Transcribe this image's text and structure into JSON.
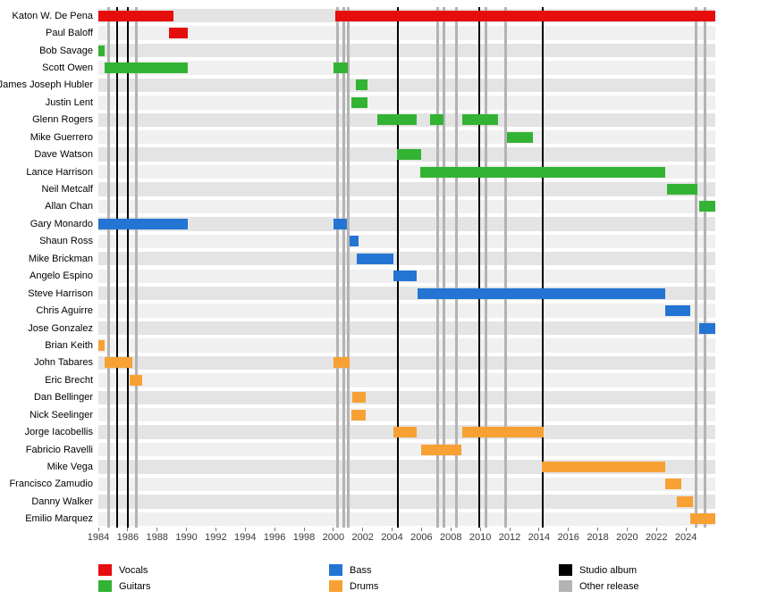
{
  "chart_data": {
    "type": "bar",
    "subtype": "band-membership-timeline",
    "title": "",
    "x_axis": {
      "start": 1984,
      "end": 2026,
      "tick_start": 1984,
      "tick_end": 2024,
      "tick_step": 2
    },
    "roles": {
      "vocals": {
        "label": "Vocals",
        "color": "#e60d0d"
      },
      "guitars": {
        "label": "Guitars",
        "color": "#33b333"
      },
      "bass": {
        "label": "Bass",
        "color": "#2474d3"
      },
      "drums": {
        "label": "Drums",
        "color": "#f7a135"
      }
    },
    "events": {
      "studio_album": {
        "label": "Studio album",
        "color": "#000000",
        "years": [
          1985.3,
          1986.0,
          2004.4,
          2009.9,
          2014.25
        ]
      },
      "other_release": {
        "label": "Other release",
        "color": "#b3b3b3",
        "years": [
          1984.7,
          1986.6,
          2000.3,
          2000.7,
          2001.0,
          2007.1,
          2007.55,
          2008.4,
          2010.4,
          2011.7,
          2024.7,
          2025.3
        ]
      }
    },
    "members": [
      {
        "name": "Katon W. De Pena",
        "role": "vocals",
        "periods": [
          [
            1984.0,
            1989.1
          ],
          [
            2000.1,
            2026.0
          ]
        ]
      },
      {
        "name": "Paul Baloff",
        "role": "vocals",
        "periods": [
          [
            1988.8,
            1990.1
          ]
        ]
      },
      {
        "name": "Bob Savage",
        "role": "guitars",
        "periods": [
          [
            1984.0,
            1984.4
          ]
        ]
      },
      {
        "name": "Scott Owen",
        "role": "guitars",
        "periods": [
          [
            1984.4,
            1990.1
          ],
          [
            2000.0,
            2001.0
          ]
        ]
      },
      {
        "name": "James Joseph Hubler",
        "role": "guitars",
        "periods": [
          [
            2001.5,
            2002.3
          ]
        ]
      },
      {
        "name": "Justin Lent",
        "role": "guitars",
        "periods": [
          [
            2001.2,
            2002.3
          ]
        ]
      },
      {
        "name": "Glenn Rogers",
        "role": "guitars",
        "periods": [
          [
            2003.0,
            2005.7
          ],
          [
            2006.6,
            2007.5
          ],
          [
            2008.8,
            2011.2
          ]
        ]
      },
      {
        "name": "Mike Guerrero",
        "role": "guitars",
        "periods": [
          [
            2011.8,
            2013.6
          ]
        ]
      },
      {
        "name": "Dave Watson",
        "role": "guitars",
        "periods": [
          [
            2004.3,
            2006.0
          ]
        ]
      },
      {
        "name": "Lance Harrison",
        "role": "guitars",
        "periods": [
          [
            2005.9,
            2022.6
          ]
        ]
      },
      {
        "name": "Neil Metcalf",
        "role": "guitars",
        "periods": [
          [
            2022.7,
            2024.8
          ]
        ]
      },
      {
        "name": "Allan Chan",
        "role": "guitars",
        "periods": [
          [
            2024.9,
            2026.0
          ]
        ]
      },
      {
        "name": "Gary Monardo",
        "role": "bass",
        "periods": [
          [
            1984.0,
            1990.1
          ],
          [
            2000.0,
            2000.9
          ]
        ]
      },
      {
        "name": "Shaun Ross",
        "role": "bass",
        "periods": [
          [
            2001.1,
            2001.7
          ]
        ]
      },
      {
        "name": "Mike Brickman",
        "role": "bass",
        "periods": [
          [
            2001.6,
            2004.1
          ]
        ]
      },
      {
        "name": "Angelo Espino",
        "role": "bass",
        "periods": [
          [
            2004.1,
            2005.7
          ]
        ]
      },
      {
        "name": "Steve Harrison",
        "role": "bass",
        "periods": [
          [
            2005.7,
            2022.6
          ]
        ]
      },
      {
        "name": "Chris Aguirre",
        "role": "bass",
        "periods": [
          [
            2022.6,
            2024.3
          ]
        ]
      },
      {
        "name": "Jose Gonzalez",
        "role": "bass",
        "periods": [
          [
            2024.9,
            2026.0
          ]
        ]
      },
      {
        "name": "Brian Keith",
        "role": "drums",
        "periods": [
          [
            1984.0,
            1984.4
          ]
        ]
      },
      {
        "name": "John Tabares",
        "role": "drums",
        "periods": [
          [
            1984.4,
            1986.3
          ],
          [
            2000.0,
            2001.1
          ]
        ]
      },
      {
        "name": "Eric Brecht",
        "role": "drums",
        "periods": [
          [
            1986.1,
            1987.0
          ]
        ]
      },
      {
        "name": "Dan Bellinger",
        "role": "drums",
        "periods": [
          [
            2001.3,
            2002.2
          ]
        ]
      },
      {
        "name": "Nick Seelinger",
        "role": "drums",
        "periods": [
          [
            2001.2,
            2002.2
          ]
        ]
      },
      {
        "name": "Jorge Iacobellis",
        "role": "drums",
        "periods": [
          [
            2004.1,
            2005.7
          ],
          [
            2008.8,
            2014.3
          ]
        ]
      },
      {
        "name": "Fabricio Ravelli",
        "role": "drums",
        "periods": [
          [
            2006.0,
            2008.7
          ]
        ]
      },
      {
        "name": "Mike Vega",
        "role": "drums",
        "periods": [
          [
            2014.2,
            2022.6
          ]
        ]
      },
      {
        "name": "Francisco Zamudio",
        "role": "drums",
        "periods": [
          [
            2022.6,
            2023.7
          ]
        ]
      },
      {
        "name": "Danny Walker",
        "role": "drums",
        "periods": [
          [
            2023.4,
            2024.5
          ]
        ]
      },
      {
        "name": "Emilio Marquez",
        "role": "drums",
        "periods": [
          [
            2024.3,
            2026.0
          ]
        ]
      }
    ],
    "legend_columns": [
      [
        "vocals",
        "guitars"
      ],
      [
        "bass",
        "drums"
      ],
      [
        "studio_album",
        "other_release"
      ]
    ],
    "layout_hints": {
      "grid": "horizontal row bands",
      "legend_position": "bottom",
      "row_band_colors": [
        "#e4e4e4",
        "#f0f0f0"
      ]
    }
  }
}
